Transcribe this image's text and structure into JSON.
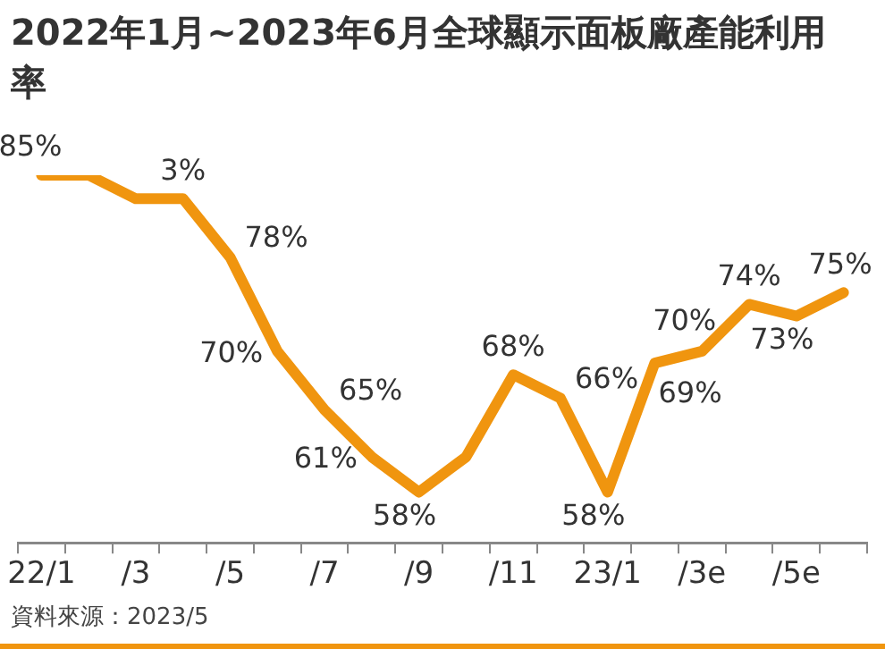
{
  "chart_data": {
    "type": "line",
    "title": "2022年1月~2023年6月全球顯示面板廠產能利用率",
    "categories": [
      "22/1",
      null,
      "/3",
      null,
      "/5",
      null,
      "/7",
      null,
      "/9",
      null,
      "/11",
      null,
      "23/1",
      null,
      "/3e",
      null,
      "/5e",
      null
    ],
    "series": [
      {
        "color": "#f0950f",
        "values": [
          85,
          85,
          83,
          83,
          78,
          70,
          65,
          61,
          58,
          61,
          68,
          66,
          58,
          69,
          70,
          74,
          73,
          75
        ],
        "value_labels": [
          "85%",
          null,
          null,
          null,
          "78%",
          "70%",
          "65%",
          "61%",
          "58%",
          null,
          "68%",
          "66%",
          "58%",
          "69%",
          "70%",
          "74%",
          "73%",
          "75%"
        ]
      }
    ],
    "marker": "none",
    "grid": false,
    "legend": false,
    "tick_labels": "x",
    "annotations": [
      {
        "text": "3%",
        "y": 83
      },
      "資料來源：2023/5"
    ]
  }
}
